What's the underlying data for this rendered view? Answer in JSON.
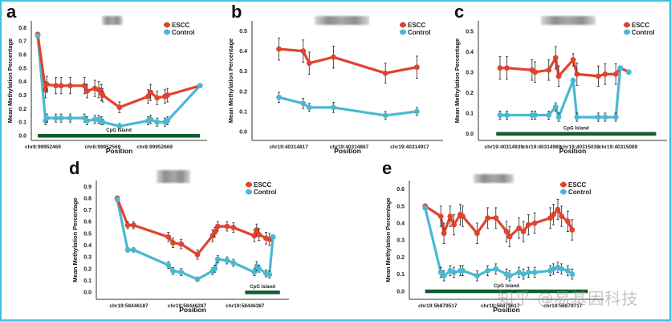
{
  "figure": {
    "watermark": "知乎 @易基因科技",
    "colors": {
      "escc": "#e0432e",
      "control": "#4bb8d2",
      "cpg": "#0f5f2e",
      "frame": "#3cc0e0"
    }
  },
  "chart_data": [
    {
      "panel": "a",
      "type": "line",
      "ylabel": "Mean Methylation Percentage",
      "xlabel": "Position",
      "ylim": [
        0.0,
        0.85
      ],
      "yticks": [
        "0.0",
        "0.1",
        "0.2",
        "0.3",
        "0.4",
        "0.5",
        "0.6",
        "0.7",
        "0.8"
      ],
      "xticks": [
        {
          "label": "chr8:99952469",
          "x": 0.04
        },
        {
          "label": "chr8:99952569",
          "x": 0.5
        },
        {
          "label": "chr8:99952669",
          "x": 0.9
        }
      ],
      "xrange": [
        0,
        1.28
      ],
      "cpg_island": {
        "label": "CpG Island",
        "from": 0.0,
        "to": 1.25
      },
      "legend": [
        "ESCC",
        "Control"
      ],
      "legend_position": "top-right",
      "series": [
        {
          "name": "ESCC",
          "x": [
            0,
            0.06,
            0.07,
            0.14,
            0.18,
            0.25,
            0.36,
            0.38,
            0.44,
            0.47,
            0.49,
            0.5,
            0.63,
            0.85,
            0.87,
            0.92,
            0.98,
            1.0,
            1.25
          ],
          "y": [
            0.75,
            0.34,
            0.38,
            0.37,
            0.37,
            0.37,
            0.37,
            0.33,
            0.35,
            0.34,
            0.32,
            0.3,
            0.21,
            0.29,
            0.32,
            0.28,
            0.29,
            0.3,
            0.37
          ],
          "err": [
            0,
            0.06,
            0.06,
            0.06,
            0.06,
            0.06,
            0.06,
            0.05,
            0.06,
            0.06,
            0.06,
            0.05,
            0.04,
            0.05,
            0.06,
            0.05,
            0.05,
            0.05,
            0
          ]
        },
        {
          "name": "Control",
          "x": [
            0,
            0.06,
            0.07,
            0.14,
            0.18,
            0.25,
            0.36,
            0.38,
            0.44,
            0.47,
            0.49,
            0.5,
            0.63,
            0.85,
            0.87,
            0.92,
            0.98,
            1.0,
            1.25
          ],
          "y": [
            0.74,
            0.11,
            0.13,
            0.13,
            0.13,
            0.13,
            0.13,
            0.11,
            0.12,
            0.12,
            0.11,
            0.1,
            0.07,
            0.11,
            0.12,
            0.1,
            0.1,
            0.11,
            0.37
          ],
          "err": [
            0,
            0.03,
            0.03,
            0.03,
            0.03,
            0.03,
            0.03,
            0.03,
            0.03,
            0.03,
            0.03,
            0.02,
            0.02,
            0.03,
            0.03,
            0.03,
            0.03,
            0.03,
            0
          ]
        }
      ]
    },
    {
      "panel": "b",
      "type": "line",
      "ylabel": "Mean Methylation Percentage",
      "xlabel": "Position",
      "ylim": [
        -0.02,
        0.55
      ],
      "yticks": [
        "0.0",
        "0.1",
        "0.2",
        "0.3",
        "0.4",
        "0.5"
      ],
      "xticks": [
        {
          "label": "chr19:40314817",
          "x": 0.0
        },
        {
          "label": "chr19:40314867",
          "x": 0.5
        },
        {
          "label": "chr19:40314917",
          "x": 1.0
        }
      ],
      "xrange": [
        -0.25,
        1.25
      ],
      "cpg_island": null,
      "legend": [
        "ESCC",
        "Control"
      ],
      "legend_position": "top-right",
      "series": [
        {
          "name": "ESCC",
          "x": [
            -0.08,
            0.12,
            0.17,
            0.37,
            0.8,
            1.06
          ],
          "y": [
            0.41,
            0.4,
            0.34,
            0.37,
            0.29,
            0.32
          ],
          "err": [
            0.055,
            0.055,
            0.055,
            0.055,
            0.05,
            0.055
          ]
        },
        {
          "name": "Control",
          "x": [
            -0.08,
            0.12,
            0.17,
            0.37,
            0.8,
            1.06
          ],
          "y": [
            0.17,
            0.14,
            0.12,
            0.12,
            0.08,
            0.1
          ],
          "err": [
            0.025,
            0.025,
            0.02,
            0.025,
            0.02,
            0.02
          ]
        }
      ]
    },
    {
      "panel": "c",
      "type": "line",
      "ylabel": "Mean Methylation Percentage",
      "xlabel": "Position",
      "ylim": [
        -0.01,
        0.55
      ],
      "yticks": [
        "0.0",
        "0.1",
        "0.2",
        "0.3",
        "0.4",
        "0.5"
      ],
      "xticks": [
        {
          "label": "chr19:40314939",
          "x": 0.0
        },
        {
          "label": "chr19:40314989",
          "x": 0.5
        },
        {
          "label": "chr19:40315039",
          "x": 1.0
        },
        {
          "label": "chr19:40315089",
          "x": 1.5
        }
      ],
      "xrange": [
        -0.25,
        2.1
      ],
      "cpg_island": {
        "label": "CpG Island",
        "from": -0.1,
        "to": 2.0
      },
      "legend": [
        "ESCC",
        "Control"
      ],
      "legend_position": "top-right",
      "series": [
        {
          "name": "ESCC",
          "x": [
            -0.05,
            0.04,
            0.37,
            0.41,
            0.59,
            0.68,
            0.72,
            0.91,
            0.96,
            1.24,
            1.33,
            1.47,
            1.53,
            1.64
          ],
          "y": [
            0.32,
            0.32,
            0.31,
            0.3,
            0.31,
            0.37,
            0.28,
            0.36,
            0.29,
            0.28,
            0.29,
            0.29,
            0.32,
            0.3
          ],
          "err": [
            0.055,
            0.055,
            0.05,
            0.05,
            0.05,
            0.055,
            0.05,
            0.03,
            0.055,
            0.05,
            0.05,
            0.05,
            0,
            0
          ]
        },
        {
          "name": "Control",
          "x": [
            -0.05,
            0.04,
            0.37,
            0.41,
            0.59,
            0.68,
            0.72,
            0.91,
            0.96,
            1.24,
            1.33,
            1.47,
            1.53,
            1.64
          ],
          "y": [
            0.09,
            0.09,
            0.09,
            0.09,
            0.09,
            0.13,
            0.08,
            0.26,
            0.08,
            0.08,
            0.08,
            0.08,
            0.32,
            0.3
          ],
          "err": [
            0.02,
            0.02,
            0.02,
            0.02,
            0.02,
            0.02,
            0.02,
            0,
            0.02,
            0.02,
            0.02,
            0.02,
            0,
            0
          ]
        }
      ]
    },
    {
      "panel": "d",
      "type": "line",
      "ylabel": "Mean Methylation Percentage",
      "xlabel": "Position",
      "ylim": [
        -0.02,
        0.95
      ],
      "yticks": [
        "0.0",
        "0.1",
        "0.2",
        "0.3",
        "0.4",
        "0.5",
        "0.6",
        "0.7",
        "0.8",
        "0.9"
      ],
      "xticks": [
        {
          "label": "chr19:58446187",
          "x": 0.0
        },
        {
          "label": "chr19:58446287",
          "x": 1.0
        },
        {
          "label": "chr19:58446387",
          "x": 2.0
        }
      ],
      "xrange": [
        -0.45,
        2.7
      ],
      "cpg_island": {
        "label": "CpG Island",
        "from": 2.0,
        "to": 2.6
      },
      "legend": [
        "ESCC",
        "Control"
      ],
      "legend_position": "top-right",
      "series": [
        {
          "name": "ESCC",
          "x": [
            -0.2,
            -0.02,
            0.08,
            0.68,
            0.76,
            0.9,
            1.18,
            1.44,
            1.48,
            1.53,
            1.69,
            1.8,
            2.16,
            2.2,
            2.24,
            2.36,
            2.42,
            2.48
          ],
          "y": [
            0.8,
            0.57,
            0.57,
            0.47,
            0.42,
            0.41,
            0.32,
            0.48,
            0.51,
            0.56,
            0.56,
            0.55,
            0.48,
            0.53,
            0.49,
            0.46,
            0.45,
            0.47
          ],
          "err": [
            0,
            0.03,
            0.03,
            0.04,
            0.04,
            0.04,
            0.04,
            0.05,
            0.04,
            0.04,
            0.04,
            0.04,
            0.05,
            0.05,
            0.05,
            0.05,
            0.05,
            0
          ]
        },
        {
          "name": "Control",
          "x": [
            -0.2,
            -0.02,
            0.08,
            0.68,
            0.76,
            0.9,
            1.18,
            1.44,
            1.48,
            1.53,
            1.69,
            1.8,
            2.16,
            2.2,
            2.24,
            2.36,
            2.42,
            2.48
          ],
          "y": [
            0.79,
            0.36,
            0.36,
            0.23,
            0.18,
            0.17,
            0.11,
            0.18,
            0.2,
            0.28,
            0.27,
            0.25,
            0.17,
            0.22,
            0.2,
            0.16,
            0.15,
            0.47
          ],
          "err": [
            0,
            0.02,
            0.02,
            0.03,
            0.03,
            0.03,
            0.02,
            0.03,
            0.03,
            0.03,
            0.03,
            0.03,
            0.03,
            0.04,
            0.03,
            0.03,
            0.03,
            0
          ]
        }
      ]
    },
    {
      "panel": "e",
      "type": "line",
      "ylabel": "Mean Methylation Percentage",
      "xlabel": "Position",
      "ylim": [
        -0.02,
        0.65
      ],
      "yticks": [
        "0.0",
        "0.1",
        "0.2",
        "0.3",
        "0.4",
        "0.5",
        "0.6"
      ],
      "xticks": [
        {
          "label": "chr19:56879517",
          "x": 0.0
        },
        {
          "label": "chr19:56879617",
          "x": 1.0
        },
        {
          "label": "chr19:56879717",
          "x": 2.0
        }
      ],
      "xrange": [
        -0.35,
        2.6
      ],
      "cpg_island": {
        "label": "CpG Island",
        "from": -0.2,
        "to": 2.4
      },
      "legend": [
        "ESCC",
        "Control"
      ],
      "legend_position": "top-right",
      "series": [
        {
          "name": "ESCC",
          "x": [
            -0.2,
            0.05,
            0.1,
            0.2,
            0.26,
            0.36,
            0.4,
            0.63,
            0.8,
            0.93,
            1.1,
            1.15,
            1.3,
            1.37,
            1.45,
            1.55,
            1.8,
            1.85,
            1.92,
            1.98,
            2.08,
            2.15
          ],
          "y": [
            0.5,
            0.44,
            0.34,
            0.44,
            0.39,
            0.45,
            0.44,
            0.34,
            0.43,
            0.43,
            0.35,
            0.32,
            0.37,
            0.35,
            0.39,
            0.4,
            0.43,
            0.45,
            0.48,
            0.44,
            0.41,
            0.36
          ],
          "err": [
            0,
            0.06,
            0.06,
            0.06,
            0.06,
            0.06,
            0.06,
            0.06,
            0.06,
            0.06,
            0.06,
            0.06,
            0.06,
            0.06,
            0.06,
            0.06,
            0.06,
            0.06,
            0.06,
            0.06,
            0.06,
            0.06
          ]
        },
        {
          "name": "Control",
          "x": [
            -0.2,
            0.05,
            0.1,
            0.2,
            0.26,
            0.36,
            0.4,
            0.63,
            0.8,
            0.93,
            1.1,
            1.15,
            1.3,
            1.37,
            1.45,
            1.55,
            1.8,
            1.85,
            1.92,
            1.98,
            2.08,
            2.15
          ],
          "y": [
            0.49,
            0.11,
            0.09,
            0.12,
            0.11,
            0.12,
            0.12,
            0.09,
            0.12,
            0.13,
            0.1,
            0.09,
            0.11,
            0.1,
            0.11,
            0.11,
            0.12,
            0.13,
            0.14,
            0.13,
            0.12,
            0.1
          ],
          "err": [
            0,
            0.03,
            0.03,
            0.03,
            0.03,
            0.03,
            0.03,
            0.03,
            0.03,
            0.03,
            0.03,
            0.03,
            0.03,
            0.03,
            0.03,
            0.03,
            0.03,
            0.03,
            0.03,
            0.03,
            0.03,
            0.03
          ]
        }
      ]
    }
  ]
}
